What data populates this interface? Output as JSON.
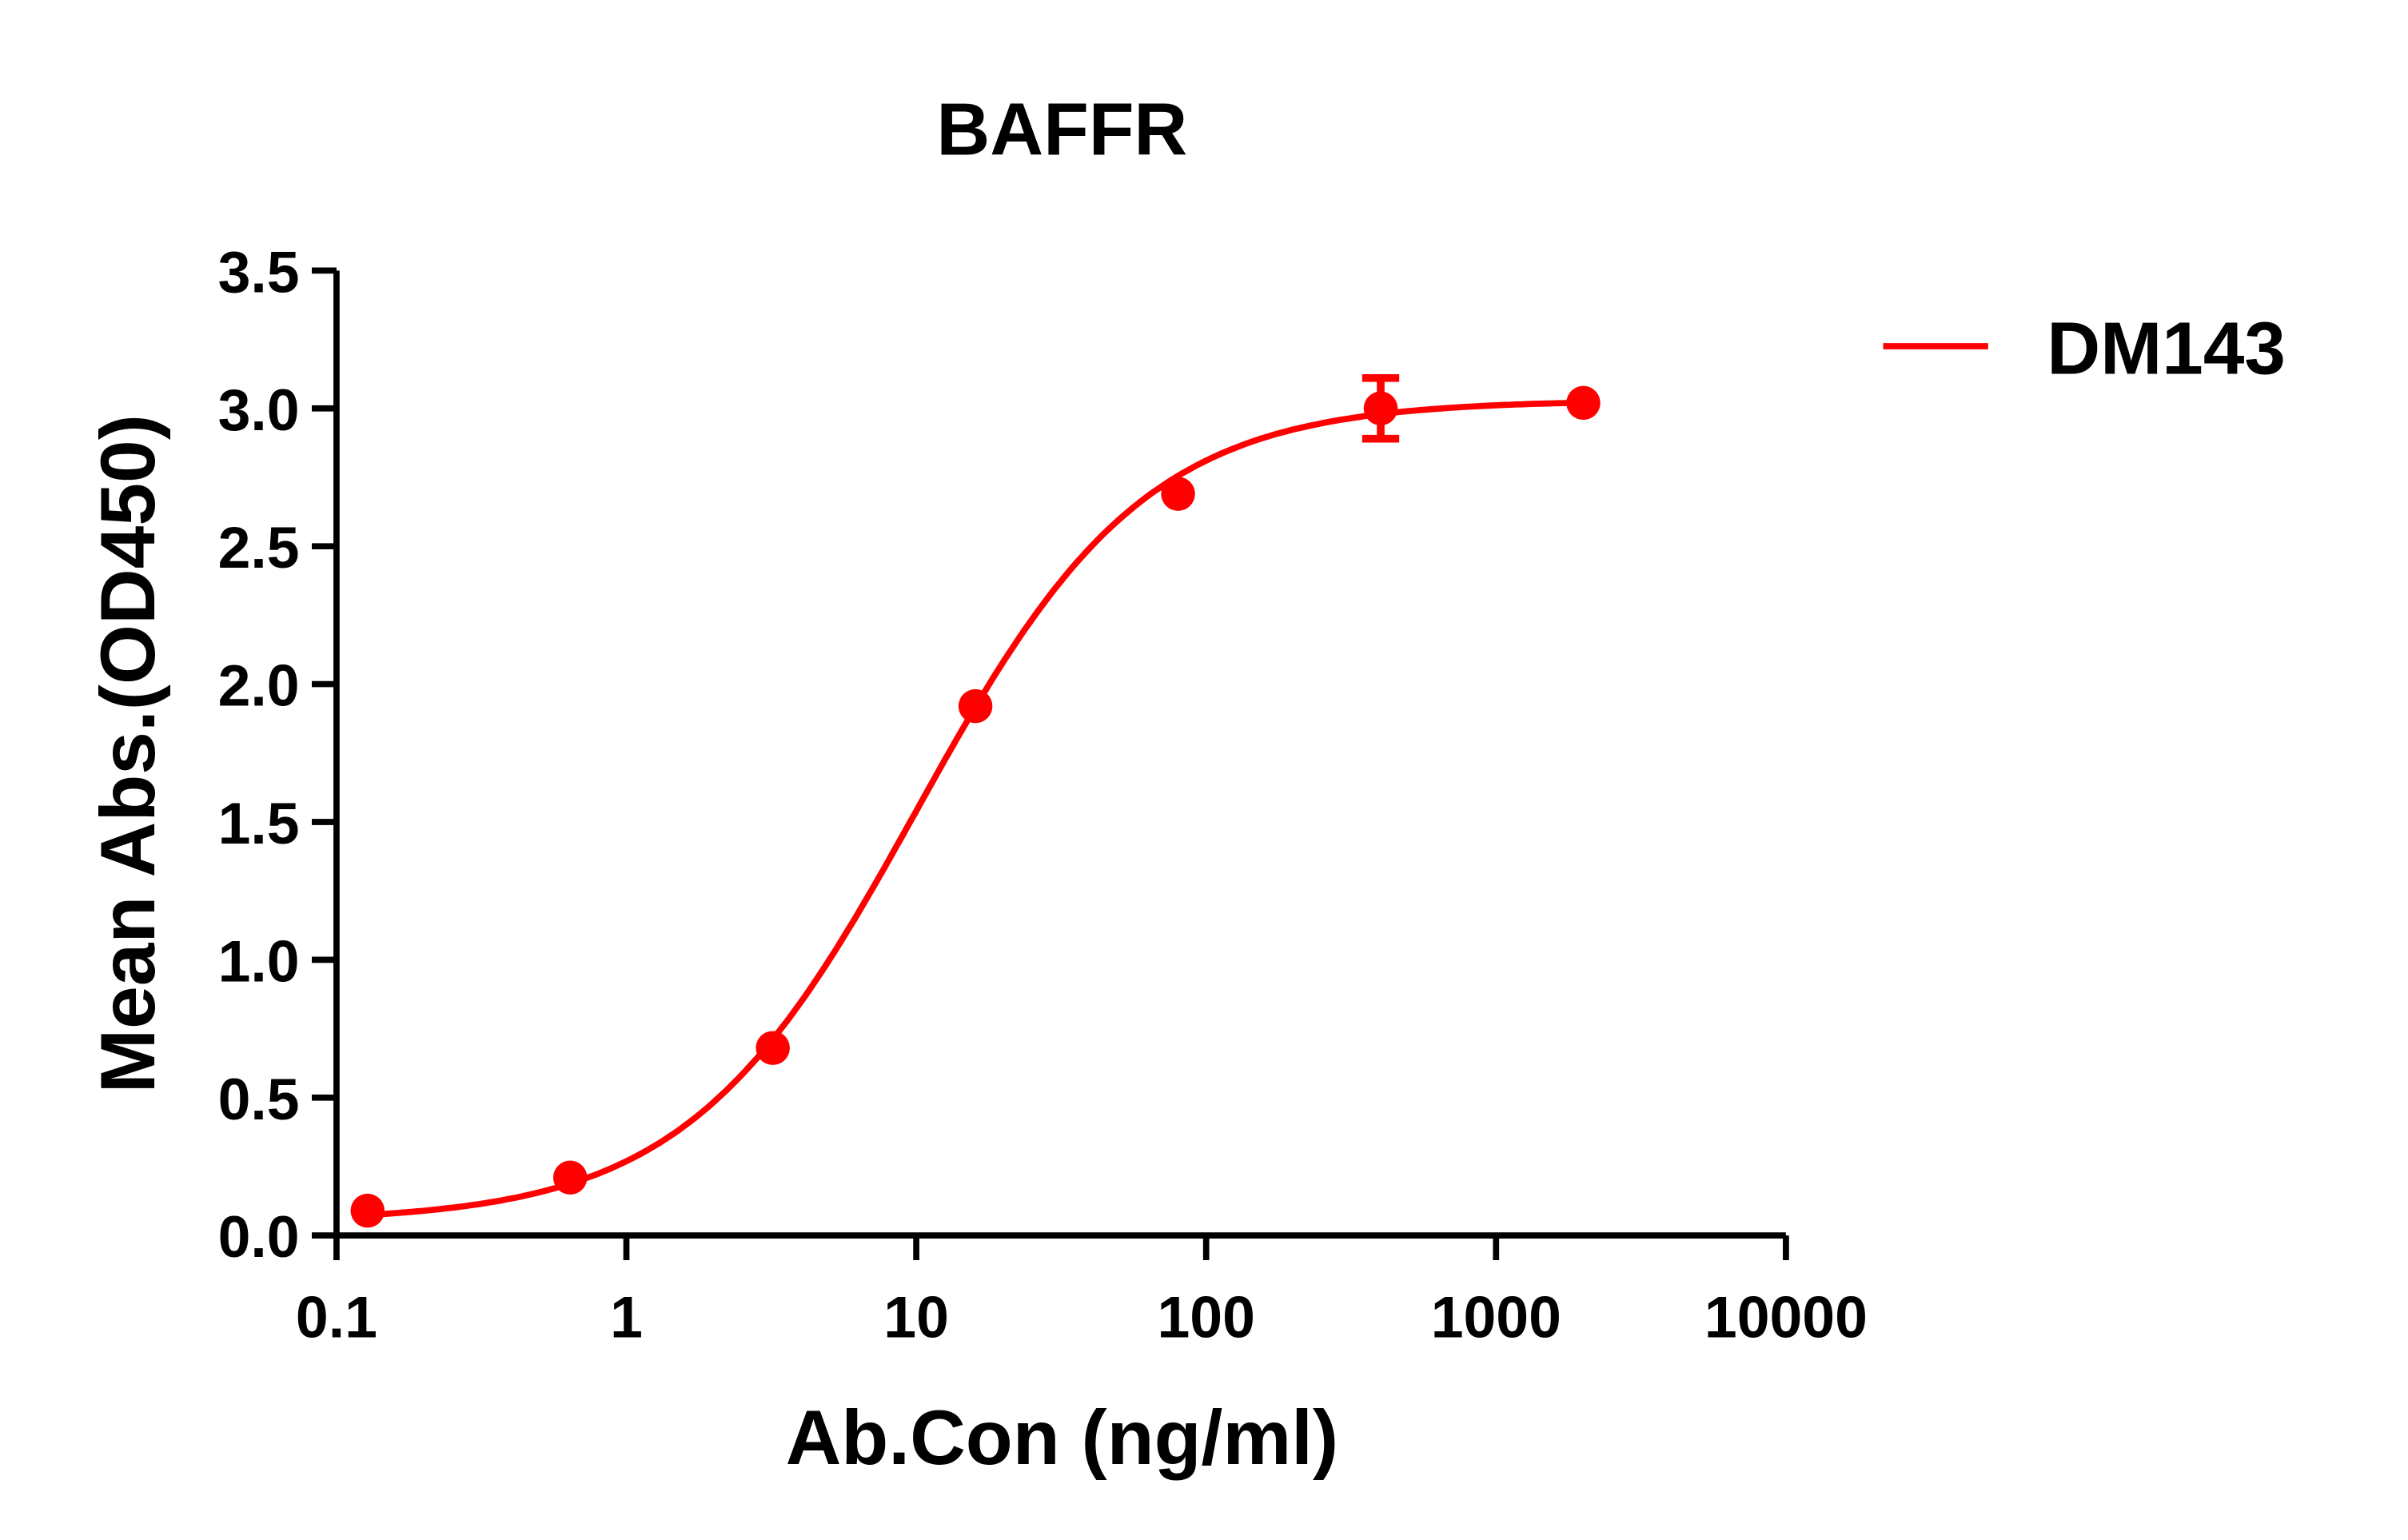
{
  "chart_data": {
    "type": "scatter",
    "title": "BAFFR",
    "xlabel": "Ab.Con (ng/ml)",
    "ylabel": "Mean Abs.(OD450)",
    "x_scale": "log",
    "xlim": [
      0.1,
      10000
    ],
    "ylim": [
      0,
      3.5
    ],
    "x_ticks": [
      "0.1",
      "1",
      "10",
      "100",
      "1000",
      "10000"
    ],
    "x_tick_values": [
      0.1,
      1,
      10,
      100,
      1000,
      10000
    ],
    "y_ticks": [
      "0.0",
      "0.5",
      "1.0",
      "1.5",
      "2.0",
      "2.5",
      "3.0",
      "3.5"
    ],
    "y_tick_values": [
      0,
      0.5,
      1,
      1.5,
      2,
      2.5,
      3,
      3.5
    ],
    "grid": false,
    "legend_position": "top-right",
    "series": [
      {
        "name": "DM143",
        "color": "#ff0000",
        "x": [
          0.128,
          0.64,
          3.2,
          16,
          80,
          400,
          2000
        ],
        "y": [
          0.09,
          0.21,
          0.68,
          1.92,
          2.69,
          3.0,
          3.02
        ],
        "error": [
          0,
          0,
          0,
          0,
          0,
          0.11,
          0
        ],
        "fit": "sigmoidal curve"
      }
    ]
  }
}
